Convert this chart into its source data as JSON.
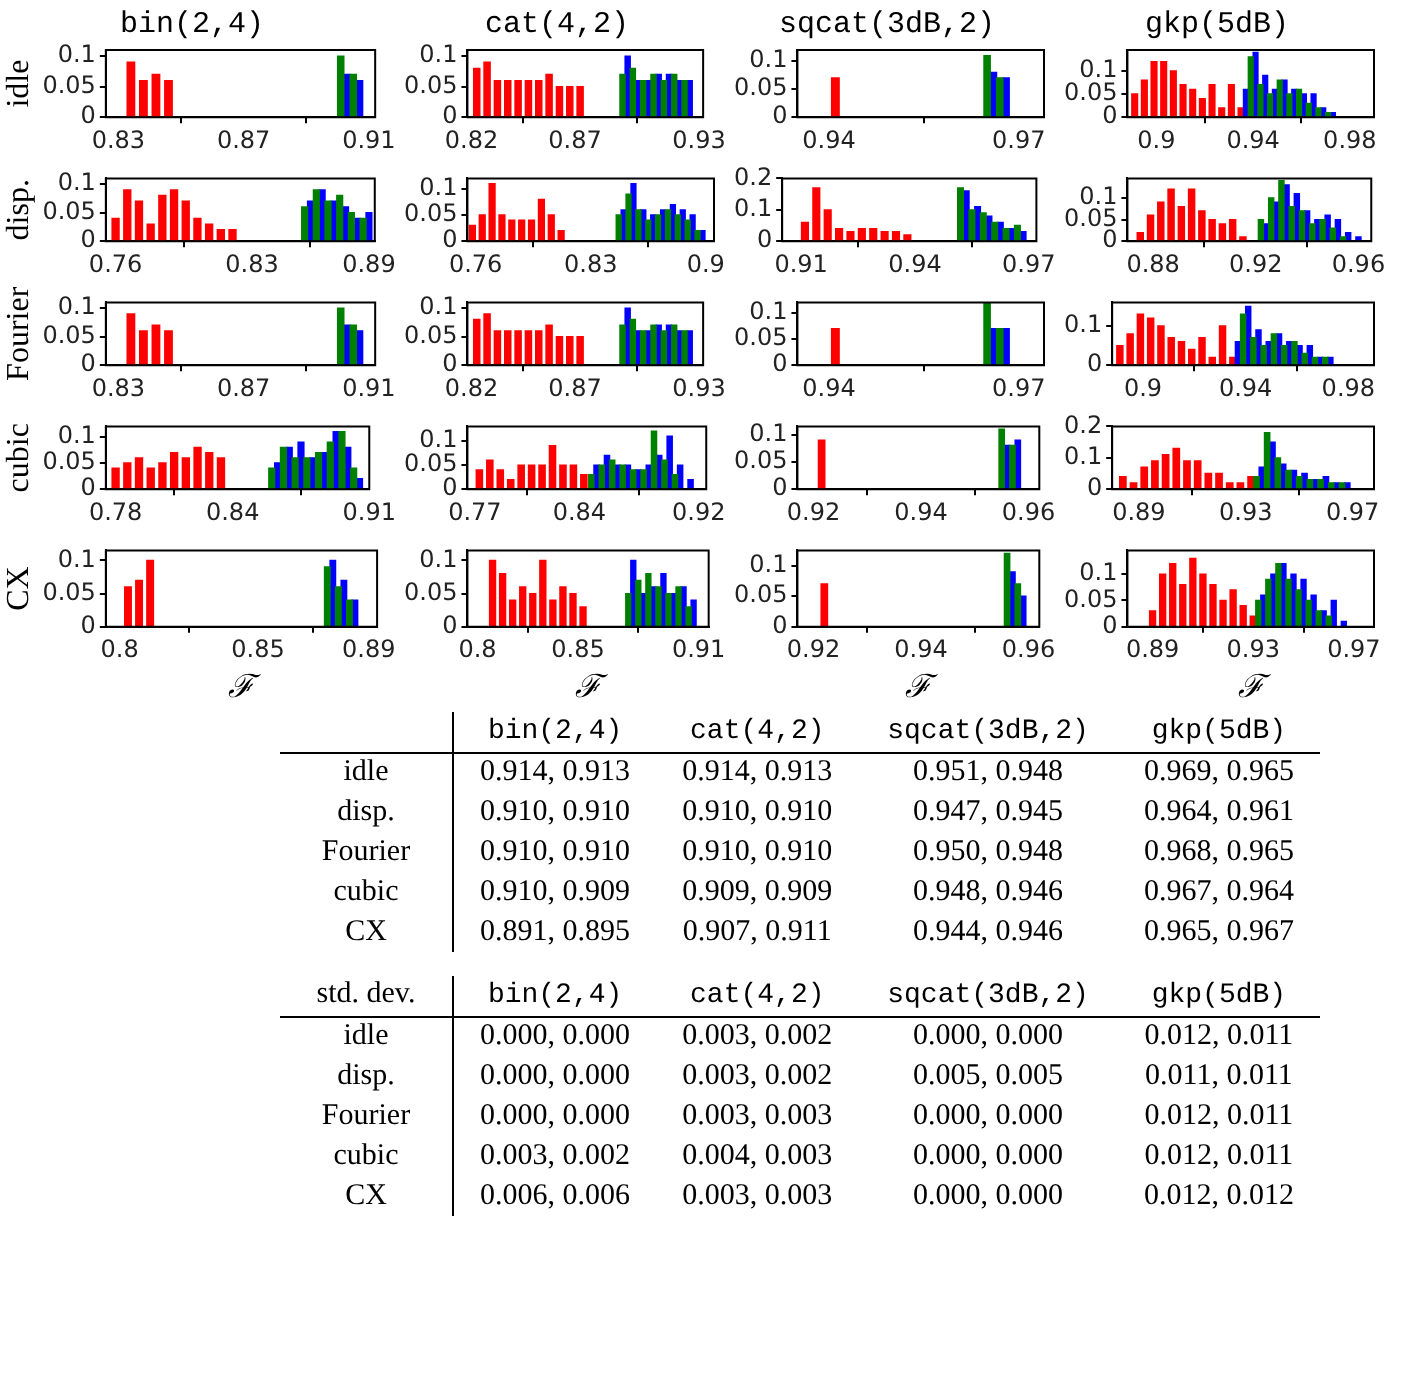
{
  "chart_data": [
    {
      "type": "bar",
      "title": "bin(2,4)",
      "ylabel": "idle",
      "xlim": [
        0.826,
        0.912
      ],
      "xticks": [
        0.83,
        0.87,
        0.91
      ],
      "ylim": [
        0,
        0.11
      ],
      "yticks": [
        0,
        0.05,
        0.1
      ],
      "series": [
        {
          "color": "#ff0000",
          "x": [
            0.834,
            0.838,
            0.842,
            0.846
          ],
          "values": [
            0.09,
            0.06,
            0.07,
            0.06
          ]
        },
        {
          "color": "#0000ff",
          "x": [
            0.903,
            0.907
          ],
          "values": [
            0.07,
            0.06
          ]
        },
        {
          "color": "#008000",
          "x": [
            0.901,
            0.905
          ],
          "values": [
            0.1,
            0.07
          ]
        }
      ]
    },
    {
      "type": "bar",
      "title": "cat(4,2)",
      "xlim": [
        0.818,
        0.932
      ],
      "xticks": [
        0.82,
        0.87,
        0.93
      ],
      "ylim": [
        0,
        0.11
      ],
      "yticks": [
        0,
        0.05,
        0.1
      ],
      "series": [
        {
          "color": "#ff0000",
          "x": [
            0.8225,
            0.8275,
            0.8325,
            0.8375,
            0.8425,
            0.8475,
            0.8525,
            0.8575,
            0.8625,
            0.8675,
            0.8725
          ],
          "values": [
            0.08,
            0.09,
            0.06,
            0.06,
            0.06,
            0.06,
            0.06,
            0.07,
            0.05,
            0.05,
            0.05
          ]
        },
        {
          "color": "#0000ff",
          "x": [
            0.8955,
            0.9005,
            0.9055,
            0.9105,
            0.9155,
            0.9205,
            0.9255
          ],
          "values": [
            0.1,
            0.06,
            0.06,
            0.07,
            0.07,
            0.06,
            0.06
          ]
        },
        {
          "color": "#008000",
          "x": [
            0.893,
            0.898,
            0.903,
            0.908,
            0.913,
            0.918,
            0.923
          ],
          "values": [
            0.07,
            0.08,
            0.06,
            0.07,
            0.06,
            0.07,
            0.06
          ]
        }
      ]
    },
    {
      "type": "bar",
      "title": "sqcat(3dB,2)",
      "xlim": [
        0.935,
        0.974
      ],
      "xticks": [
        0.94,
        0.97
      ],
      "ylim": [
        0,
        0.12
      ],
      "yticks": [
        0,
        0.05,
        0.1
      ],
      "series": [
        {
          "color": "#ff0000",
          "x": [
            0.941
          ],
          "values": [
            0.07
          ]
        },
        {
          "color": "#0000ff",
          "x": [
            0.966,
            0.968
          ],
          "values": [
            0.08,
            0.07
          ]
        },
        {
          "color": "#008000",
          "x": [
            0.965,
            0.967
          ],
          "values": [
            0.11,
            0.07
          ]
        }
      ]
    },
    {
      "type": "bar",
      "title": "gkp(5dB)",
      "xlim": [
        0.888,
        0.99
      ],
      "xticks": [
        0.9,
        0.94,
        0.98
      ],
      "ylim": [
        0,
        0.145
      ],
      "yticks": [
        0,
        0.05,
        0.1
      ],
      "series": [
        {
          "color": "#ff0000",
          "x": [
            0.891,
            0.895,
            0.899,
            0.903,
            0.907,
            0.911,
            0.915,
            0.919,
            0.923,
            0.927,
            0.931,
            0.935
          ],
          "values": [
            0.05,
            0.08,
            0.12,
            0.12,
            0.1,
            0.07,
            0.06,
            0.04,
            0.07,
            0.02,
            0.07,
            0.02
          ]
        },
        {
          "color": "#0000ff",
          "x": [
            0.937,
            0.941,
            0.945,
            0.949,
            0.953,
            0.957,
            0.961,
            0.965,
            0.969,
            0.973
          ],
          "values": [
            0.06,
            0.14,
            0.09,
            0.06,
            0.08,
            0.06,
            0.05,
            0.05,
            0.02,
            0.01
          ]
        },
        {
          "color": "#008000",
          "x": [
            0.939,
            0.943,
            0.947,
            0.951,
            0.955,
            0.959,
            0.963,
            0.967,
            0.971
          ],
          "values": [
            0.13,
            0.07,
            0.05,
            0.08,
            0.05,
            0.06,
            0.03,
            0.02,
            0.01
          ]
        }
      ]
    },
    {
      "type": "bar",
      "ylabel": "disp.",
      "xlim": [
        0.755,
        0.893
      ],
      "xticks": [
        0.76,
        0.83,
        0.89
      ],
      "ylim": [
        0,
        0.11
      ],
      "yticks": [
        0,
        0.05,
        0.1
      ],
      "series": [
        {
          "color": "#ff0000",
          "x": [
            0.76,
            0.766,
            0.772,
            0.778,
            0.784,
            0.79,
            0.796,
            0.802,
            0.808,
            0.814,
            0.82
          ],
          "values": [
            0.04,
            0.09,
            0.07,
            0.03,
            0.08,
            0.09,
            0.07,
            0.04,
            0.03,
            0.02,
            0.02
          ]
        },
        {
          "color": "#0000ff",
          "x": [
            0.86,
            0.866,
            0.872,
            0.878,
            0.884,
            0.89
          ],
          "values": [
            0.07,
            0.09,
            0.07,
            0.06,
            0.04,
            0.05
          ]
        },
        {
          "color": "#008000",
          "x": [
            0.857,
            0.863,
            0.869,
            0.875,
            0.881,
            0.887
          ],
          "values": [
            0.06,
            0.09,
            0.07,
            0.08,
            0.05,
            0.04
          ]
        }
      ]
    },
    {
      "type": "bar",
      "xlim": [
        0.755,
        0.905
      ],
      "xticks": [
        0.76,
        0.83,
        0.9
      ],
      "ylim": [
        0,
        0.12
      ],
      "yticks": [
        0,
        0.05,
        0.1
      ],
      "series": [
        {
          "color": "#ff0000",
          "x": [
            0.758,
            0.764,
            0.77,
            0.776,
            0.782,
            0.788,
            0.794,
            0.8,
            0.806,
            0.812
          ],
          "values": [
            0.03,
            0.05,
            0.11,
            0.05,
            0.04,
            0.04,
            0.04,
            0.08,
            0.05,
            0.02
          ]
        },
        {
          "color": "#0000ff",
          "x": [
            0.85,
            0.856,
            0.862,
            0.868,
            0.874,
            0.88,
            0.886,
            0.892,
            0.898
          ],
          "values": [
            0.06,
            0.11,
            0.06,
            0.05,
            0.06,
            0.07,
            0.06,
            0.05,
            0.02
          ]
        },
        {
          "color": "#008000",
          "x": [
            0.847,
            0.853,
            0.859,
            0.865,
            0.871,
            0.877,
            0.883,
            0.889,
            0.895
          ],
          "values": [
            0.05,
            0.09,
            0.06,
            0.04,
            0.05,
            0.06,
            0.05,
            0.04,
            0.02
          ]
        }
      ]
    },
    {
      "type": "bar",
      "xlim": [
        0.905,
        0.972
      ],
      "xticks": [
        0.91,
        0.94,
        0.97
      ],
      "ylim": [
        0,
        0.2
      ],
      "yticks": [
        0,
        0.1,
        0.2
      ],
      "series": [
        {
          "color": "#ff0000",
          "x": [
            0.911,
            0.914,
            0.917,
            0.92,
            0.923,
            0.926,
            0.929,
            0.932,
            0.935,
            0.938
          ],
          "values": [
            0.06,
            0.17,
            0.1,
            0.04,
            0.03,
            0.04,
            0.04,
            0.03,
            0.03,
            0.02
          ]
        },
        {
          "color": "#0000ff",
          "x": [
            0.9535,
            0.9565,
            0.9595,
            0.9625,
            0.9655,
            0.9685
          ],
          "values": [
            0.16,
            0.11,
            0.08,
            0.06,
            0.04,
            0.03
          ]
        },
        {
          "color": "#008000",
          "x": [
            0.952,
            0.955,
            0.958,
            0.961,
            0.964,
            0.967
          ],
          "values": [
            0.17,
            0.1,
            0.09,
            0.06,
            0.04,
            0.05
          ]
        }
      ]
    },
    {
      "type": "bar",
      "xlim": [
        0.87,
        0.965
      ],
      "xticks": [
        0.88,
        0.92,
        0.96
      ],
      "ylim": [
        0,
        0.145
      ],
      "yticks": [
        0,
        0.05,
        0.1
      ],
      "series": [
        {
          "color": "#ff0000",
          "x": [
            0.875,
            0.879,
            0.883,
            0.887,
            0.891,
            0.895,
            0.899,
            0.903,
            0.907,
            0.911,
            0.915
          ],
          "values": [
            0.02,
            0.06,
            0.09,
            0.12,
            0.08,
            0.12,
            0.07,
            0.05,
            0.04,
            0.05,
            0.01
          ]
        },
        {
          "color": "#0000ff",
          "x": [
            0.924,
            0.928,
            0.932,
            0.936,
            0.94,
            0.944,
            0.948,
            0.952,
            0.956,
            0.96
          ],
          "values": [
            0.04,
            0.09,
            0.13,
            0.11,
            0.07,
            0.05,
            0.06,
            0.05,
            0.02,
            0.01
          ]
        },
        {
          "color": "#008000",
          "x": [
            0.922,
            0.926,
            0.93,
            0.934,
            0.938,
            0.942,
            0.946,
            0.95,
            0.954
          ],
          "values": [
            0.05,
            0.1,
            0.14,
            0.08,
            0.07,
            0.04,
            0.05,
            0.03,
            0.01
          ]
        }
      ]
    },
    {
      "type": "bar",
      "ylabel": "Fourier",
      "xlim": [
        0.826,
        0.912
      ],
      "xticks": [
        0.83,
        0.87,
        0.91
      ],
      "ylim": [
        0,
        0.11
      ],
      "yticks": [
        0,
        0.05,
        0.1
      ],
      "series": [
        {
          "color": "#ff0000",
          "x": [
            0.834,
            0.838,
            0.842,
            0.846
          ],
          "values": [
            0.09,
            0.06,
            0.07,
            0.06
          ]
        },
        {
          "color": "#0000ff",
          "x": [
            0.903,
            0.907
          ],
          "values": [
            0.07,
            0.06
          ]
        },
        {
          "color": "#008000",
          "x": [
            0.901,
            0.905
          ],
          "values": [
            0.1,
            0.07
          ]
        }
      ]
    },
    {
      "type": "bar",
      "xlim": [
        0.818,
        0.932
      ],
      "xticks": [
        0.82,
        0.87,
        0.93
      ],
      "ylim": [
        0,
        0.11
      ],
      "yticks": [
        0,
        0.05,
        0.1
      ],
      "series": [
        {
          "color": "#ff0000",
          "x": [
            0.8225,
            0.8275,
            0.8325,
            0.8375,
            0.8425,
            0.8475,
            0.8525,
            0.8575,
            0.8625,
            0.8675,
            0.8725
          ],
          "values": [
            0.08,
            0.09,
            0.06,
            0.06,
            0.06,
            0.06,
            0.06,
            0.07,
            0.05,
            0.05,
            0.05
          ]
        },
        {
          "color": "#0000ff",
          "x": [
            0.8955,
            0.9005,
            0.9055,
            0.9105,
            0.9155,
            0.9205,
            0.9255
          ],
          "values": [
            0.1,
            0.06,
            0.06,
            0.07,
            0.07,
            0.06,
            0.06
          ]
        },
        {
          "color": "#008000",
          "x": [
            0.893,
            0.898,
            0.903,
            0.908,
            0.913,
            0.918,
            0.923
          ],
          "values": [
            0.07,
            0.08,
            0.06,
            0.07,
            0.06,
            0.07,
            0.06
          ]
        }
      ]
    },
    {
      "type": "bar",
      "xlim": [
        0.935,
        0.974
      ],
      "xticks": [
        0.94,
        0.97
      ],
      "ylim": [
        0,
        0.12
      ],
      "yticks": [
        0,
        0.05,
        0.1
      ],
      "series": [
        {
          "color": "#ff0000",
          "x": [
            0.941
          ],
          "values": [
            0.07
          ]
        },
        {
          "color": "#0000ff",
          "x": [
            0.966,
            0.968
          ],
          "values": [
            0.07,
            0.07
          ]
        },
        {
          "color": "#008000",
          "x": [
            0.965,
            0.967
          ],
          "values": [
            0.12,
            0.07
          ]
        }
      ]
    },
    {
      "type": "bar",
      "xlim": [
        0.888,
        0.99
      ],
      "xticks": [
        0.9,
        0.94,
        0.98
      ],
      "ylim": [
        0,
        0.16
      ],
      "yticks": [
        0,
        0.1
      ],
      "series": [
        {
          "color": "#ff0000",
          "x": [
            0.891,
            0.895,
            0.899,
            0.903,
            0.907,
            0.911,
            0.915,
            0.919,
            0.923,
            0.927,
            0.931,
            0.935
          ],
          "values": [
            0.05,
            0.08,
            0.13,
            0.12,
            0.1,
            0.07,
            0.06,
            0.04,
            0.07,
            0.02,
            0.1,
            0.02
          ]
        },
        {
          "color": "#0000ff",
          "x": [
            0.937,
            0.941,
            0.945,
            0.949,
            0.953,
            0.957,
            0.961,
            0.965,
            0.969,
            0.973
          ],
          "values": [
            0.06,
            0.15,
            0.09,
            0.06,
            0.08,
            0.06,
            0.05,
            0.05,
            0.02,
            0.02
          ]
        },
        {
          "color": "#008000",
          "x": [
            0.939,
            0.943,
            0.947,
            0.951,
            0.955,
            0.959,
            0.963,
            0.967,
            0.971
          ],
          "values": [
            0.13,
            0.07,
            0.05,
            0.08,
            0.05,
            0.06,
            0.03,
            0.02,
            0.02
          ]
        }
      ]
    },
    {
      "type": "bar",
      "ylabel": "cubic",
      "xlim": [
        0.775,
        0.91
      ],
      "xticks": [
        0.78,
        0.84,
        0.91
      ],
      "ylim": [
        0,
        0.12
      ],
      "yticks": [
        0,
        0.05,
        0.1
      ],
      "series": [
        {
          "color": "#ff0000",
          "x": [
            0.78,
            0.786,
            0.792,
            0.798,
            0.804,
            0.81,
            0.816,
            0.822,
            0.828,
            0.834
          ],
          "values": [
            0.04,
            0.05,
            0.06,
            0.04,
            0.05,
            0.07,
            0.06,
            0.08,
            0.07,
            0.06
          ]
        },
        {
          "color": "#0000ff",
          "x": [
            0.863,
            0.869,
            0.875,
            0.881,
            0.887,
            0.893,
            0.899,
            0.905
          ],
          "values": [
            0.05,
            0.08,
            0.09,
            0.06,
            0.07,
            0.11,
            0.08,
            0.02
          ]
        },
        {
          "color": "#008000",
          "x": [
            0.86,
            0.866,
            0.872,
            0.878,
            0.884,
            0.89,
            0.896,
            0.902
          ],
          "values": [
            0.04,
            0.08,
            0.06,
            0.06,
            0.07,
            0.09,
            0.11,
            0.04
          ]
        }
      ]
    },
    {
      "type": "bar",
      "xlim": [
        0.765,
        0.925
      ],
      "xticks": [
        0.77,
        0.84,
        0.92
      ],
      "ylim": [
        0,
        0.13
      ],
      "yticks": [
        0,
        0.05,
        0.1
      ],
      "series": [
        {
          "color": "#ff0000",
          "x": [
            0.773,
            0.78,
            0.787,
            0.794,
            0.801,
            0.808,
            0.815,
            0.822,
            0.829,
            0.836,
            0.843
          ],
          "values": [
            0.04,
            0.06,
            0.04,
            0.02,
            0.05,
            0.05,
            0.05,
            0.09,
            0.05,
            0.05,
            0.03
          ]
        },
        {
          "color": "#0000ff",
          "x": [
            0.8515,
            0.8585,
            0.8655,
            0.8725,
            0.8795,
            0.8865,
            0.8935,
            0.9005,
            0.9075,
            0.9145
          ],
          "values": [
            0.05,
            0.07,
            0.05,
            0.05,
            0.04,
            0.05,
            0.07,
            0.11,
            0.05,
            0.02
          ]
        },
        {
          "color": "#008000",
          "x": [
            0.848,
            0.855,
            0.862,
            0.869,
            0.876,
            0.883,
            0.89,
            0.897,
            0.904
          ],
          "values": [
            0.03,
            0.05,
            0.06,
            0.05,
            0.04,
            0.04,
            0.12,
            0.06,
            0.03
          ]
        }
      ]
    },
    {
      "type": "bar",
      "xlim": [
        0.917,
        0.962
      ],
      "xticks": [
        0.92,
        0.94,
        0.96
      ],
      "ylim": [
        0,
        0.115
      ],
      "yticks": [
        0,
        0.05,
        0.1
      ],
      "series": [
        {
          "color": "#ff0000",
          "x": [
            0.9215
          ],
          "values": [
            0.09
          ]
        },
        {
          "color": "#0000ff",
          "x": [
            0.956,
            0.958
          ],
          "values": [
            0.08,
            0.09
          ]
        },
        {
          "color": "#008000",
          "x": [
            0.955,
            0.957
          ],
          "values": [
            0.11,
            0.08
          ]
        }
      ]
    },
    {
      "type": "bar",
      "xlim": [
        0.88,
        0.978
      ],
      "xticks": [
        0.89,
        0.93,
        0.97
      ],
      "ylim": [
        0,
        0.2
      ],
      "yticks": [
        0,
        0.1,
        0.2
      ],
      "series": [
        {
          "color": "#ff0000",
          "x": [
            0.884,
            0.888,
            0.892,
            0.896,
            0.9,
            0.904,
            0.908,
            0.912,
            0.916,
            0.92,
            0.924,
            0.928,
            0.932
          ],
          "values": [
            0.04,
            0.02,
            0.07,
            0.09,
            0.11,
            0.13,
            0.09,
            0.09,
            0.05,
            0.05,
            0.02,
            0.02,
            0.04
          ]
        },
        {
          "color": "#0000ff",
          "x": [
            0.936,
            0.94,
            0.944,
            0.948,
            0.952,
            0.956,
            0.96,
            0.964,
            0.968
          ],
          "values": [
            0.07,
            0.15,
            0.08,
            0.06,
            0.05,
            0.03,
            0.04,
            0.02,
            0.02
          ]
        },
        {
          "color": "#008000",
          "x": [
            0.934,
            0.938,
            0.942,
            0.946,
            0.95,
            0.954,
            0.958,
            0.962,
            0.966
          ],
          "values": [
            0.04,
            0.18,
            0.1,
            0.06,
            0.04,
            0.03,
            0.03,
            0.02,
            0.02
          ]
        }
      ]
    },
    {
      "type": "bar",
      "ylabel": "CX",
      "xlabel": "ℱ",
      "xlim": [
        0.795,
        0.893
      ],
      "xticks": [
        0.8,
        0.85,
        0.89
      ],
      "ylim": [
        0,
        0.115
      ],
      "yticks": [
        0,
        0.05,
        0.1
      ],
      "series": [
        {
          "color": "#ff0000",
          "x": [
            0.803,
            0.807,
            0.811
          ],
          "values": [
            0.06,
            0.07,
            0.1
          ]
        },
        {
          "color": "#0000ff",
          "x": [
            0.877,
            0.881,
            0.885
          ],
          "values": [
            0.1,
            0.07,
            0.04
          ]
        },
        {
          "color": "#008000",
          "x": [
            0.875,
            0.879,
            0.883
          ],
          "values": [
            0.09,
            0.06,
            0.04
          ]
        }
      ]
    },
    {
      "type": "bar",
      "xlabel": "ℱ",
      "xlim": [
        0.795,
        0.915
      ],
      "xticks": [
        0.8,
        0.85,
        0.91
      ],
      "ylim": [
        0,
        0.115
      ],
      "yticks": [
        0,
        0.05,
        0.1
      ],
      "series": [
        {
          "color": "#ff0000",
          "x": [
            0.8075,
            0.8125,
            0.8175,
            0.8225,
            0.8275,
            0.8325,
            0.8375,
            0.8425,
            0.8475,
            0.8525
          ],
          "values": [
            0.1,
            0.08,
            0.04,
            0.06,
            0.05,
            0.1,
            0.04,
            0.06,
            0.05,
            0.03
          ]
        },
        {
          "color": "#0000ff",
          "x": [
            0.8775,
            0.8825,
            0.8875,
            0.8925,
            0.8975,
            0.9025,
            0.9075
          ],
          "values": [
            0.1,
            0.05,
            0.06,
            0.08,
            0.05,
            0.06,
            0.04
          ]
        },
        {
          "color": "#008000",
          "x": [
            0.875,
            0.88,
            0.885,
            0.89,
            0.895,
            0.9,
            0.905
          ],
          "values": [
            0.05,
            0.07,
            0.08,
            0.06,
            0.05,
            0.06,
            0.03
          ]
        }
      ]
    },
    {
      "type": "bar",
      "xlabel": "ℱ",
      "xlim": [
        0.917,
        0.962
      ],
      "xticks": [
        0.92,
        0.94,
        0.96
      ],
      "ylim": [
        0,
        0.125
      ],
      "yticks": [
        0,
        0.05,
        0.1
      ],
      "series": [
        {
          "color": "#ff0000",
          "x": [
            0.922
          ],
          "values": [
            0.07
          ]
        },
        {
          "color": "#0000ff",
          "x": [
            0.957,
            0.959
          ],
          "values": [
            0.09,
            0.05
          ]
        },
        {
          "color": "#008000",
          "x": [
            0.956,
            0.958
          ],
          "values": [
            0.12,
            0.07
          ]
        }
      ]
    },
    {
      "type": "bar",
      "xlabel": "ℱ",
      "xlim": [
        0.88,
        0.978
      ],
      "xticks": [
        0.89,
        0.93,
        0.97
      ],
      "ylim": [
        0,
        0.145
      ],
      "yticks": [
        0,
        0.05,
        0.1
      ],
      "series": [
        {
          "color": "#ff0000",
          "x": [
            0.89,
            0.894,
            0.898,
            0.902,
            0.906,
            0.91,
            0.914,
            0.918,
            0.922,
            0.926,
            0.93
          ],
          "values": [
            0.03,
            0.1,
            0.12,
            0.08,
            0.13,
            0.1,
            0.08,
            0.05,
            0.07,
            0.04,
            0.02
          ]
        },
        {
          "color": "#0000ff",
          "x": [
            0.934,
            0.938,
            0.942,
            0.946,
            0.95,
            0.954,
            0.958,
            0.962,
            0.966
          ],
          "values": [
            0.06,
            0.1,
            0.12,
            0.1,
            0.09,
            0.06,
            0.03,
            0.05,
            0.01
          ]
        },
        {
          "color": "#008000",
          "x": [
            0.932,
            0.936,
            0.94,
            0.944,
            0.948,
            0.952,
            0.956,
            0.96
          ],
          "values": [
            0.05,
            0.09,
            0.12,
            0.09,
            0.07,
            0.05,
            0.03,
            0.02
          ]
        }
      ]
    },
    {
      "type": "other",
      "categories": [
        "bin(2,4)",
        "cat(4,2)",
        "sqcat(3dB,2)",
        "gkp(5dB)"
      ],
      "y_categories": [
        "idle",
        "disp.",
        "Fourier",
        "cubic",
        "CX"
      ],
      "cell_labels": [
        [
          "0.914, 0.913",
          "0.914, 0.913",
          "0.951, 0.948",
          "0.969, 0.965"
        ],
        [
          "0.910, 0.910",
          "0.910, 0.910",
          "0.947, 0.945",
          "0.964, 0.961"
        ],
        [
          "0.910, 0.910",
          "0.910, 0.910",
          "0.950, 0.948",
          "0.968, 0.965"
        ],
        [
          "0.910, 0.909",
          "0.909, 0.909",
          "0.948, 0.946",
          "0.967, 0.964"
        ],
        [
          "0.891, 0.895",
          "0.907, 0.911",
          "0.944, 0.946",
          "0.965, 0.967"
        ]
      ]
    },
    {
      "type": "other",
      "title": "std. dev.",
      "categories": [
        "bin(2,4)",
        "cat(4,2)",
        "sqcat(3dB,2)",
        "gkp(5dB)"
      ],
      "y_categories": [
        "idle",
        "disp.",
        "Fourier",
        "cubic",
        "CX"
      ],
      "cell_labels": [
        [
          "0.000, 0.000",
          "0.003, 0.002",
          "0.000, 0.000",
          "0.012, 0.011"
        ],
        [
          "0.000, 0.000",
          "0.003, 0.002",
          "0.005, 0.005",
          "0.011, 0.011"
        ],
        [
          "0.000, 0.000",
          "0.003, 0.003",
          "0.000, 0.000",
          "0.012, 0.011"
        ],
        [
          "0.003, 0.002",
          "0.004, 0.003",
          "0.000, 0.000",
          "0.012, 0.011"
        ],
        [
          "0.006, 0.006",
          "0.003, 0.003",
          "0.000, 0.000",
          "0.012, 0.012"
        ]
      ]
    }
  ]
}
